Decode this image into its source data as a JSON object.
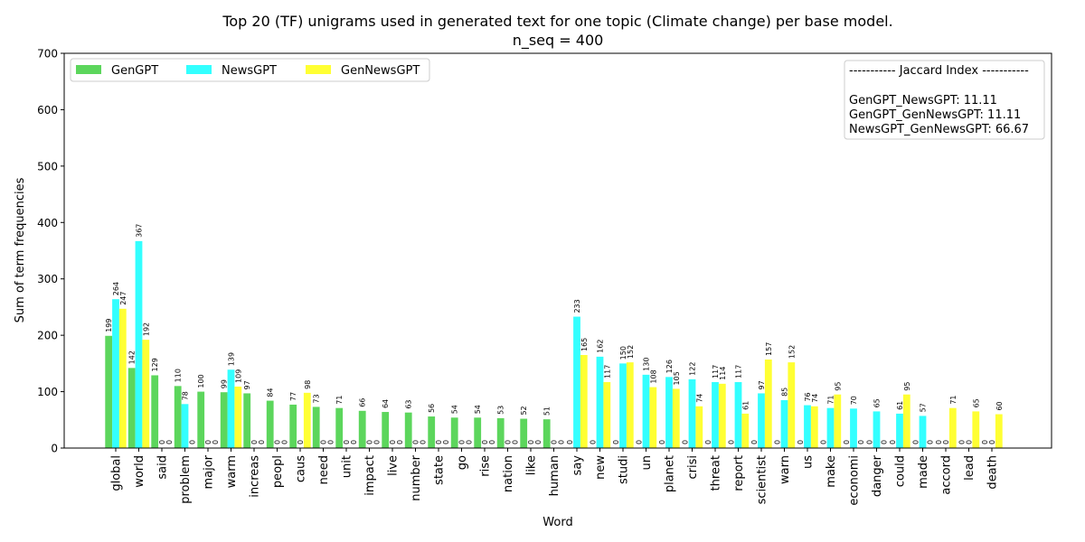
{
  "chart_data": {
    "type": "bar",
    "title": "Top 20 (TF) unigrams used in generated text for one topic (Climate change) per base model.",
    "subtitle": "n_seq = 400",
    "xlabel": "Word",
    "ylabel": "Sum of term frequencies",
    "ylim": [
      0,
      700
    ],
    "yticks": [
      0,
      100,
      200,
      300,
      400,
      500,
      600,
      700
    ],
    "grid": false,
    "legend_position": "top-left",
    "categories": [
      "global",
      "world",
      "said",
      "problem",
      "major",
      "warm",
      "increas",
      "peopl",
      "caus",
      "need",
      "unit",
      "impact",
      "live",
      "number",
      "state",
      "go",
      "rise",
      "nation",
      "like",
      "human",
      "say",
      "new",
      "studi",
      "un",
      "planet",
      "crisi",
      "threat",
      "report",
      "scientist",
      "warn",
      "us",
      "make",
      "economi",
      "danger",
      "could",
      "made",
      "accord",
      "lead",
      "death"
    ],
    "series": [
      {
        "name": "GenGPT",
        "color": "#5cd65c",
        "values": [
          199,
          142,
          129,
          110,
          100,
          99,
          97,
          84,
          77,
          73,
          71,
          66,
          64,
          63,
          56,
          54,
          54,
          53,
          52,
          51,
          0,
          0,
          0,
          0,
          0,
          0,
          0,
          0,
          0,
          0,
          0,
          0,
          0,
          0,
          0,
          0,
          0,
          0,
          0
        ]
      },
      {
        "name": "NewsGPT",
        "color": "#33ffff",
        "values": [
          264,
          367,
          0,
          78,
          0,
          139,
          0,
          0,
          0,
          0,
          0,
          0,
          0,
          0,
          0,
          0,
          0,
          0,
          0,
          0,
          233,
          162,
          150,
          130,
          126,
          122,
          117,
          117,
          97,
          85,
          76,
          71,
          70,
          65,
          61,
          57,
          0,
          0,
          0
        ]
      },
      {
        "name": "GenNewsGPT",
        "color": "#ffff33",
        "values": [
          247,
          192,
          0,
          0,
          0,
          109,
          0,
          0,
          98,
          0,
          0,
          0,
          0,
          0,
          0,
          0,
          0,
          0,
          0,
          0,
          165,
          117,
          152,
          108,
          105,
          74,
          114,
          61,
          157,
          152,
          74,
          95,
          0,
          0,
          95,
          0,
          71,
          65,
          60
        ]
      }
    ],
    "annotation_box": {
      "header": "----------- Jaccard Index -----------",
      "lines": [
        "GenGPT_NewsGPT: 11.11",
        "GenGPT_GenNewsGPT: 11.11",
        "NewsGPT_GenNewsGPT: 66.67"
      ]
    }
  }
}
